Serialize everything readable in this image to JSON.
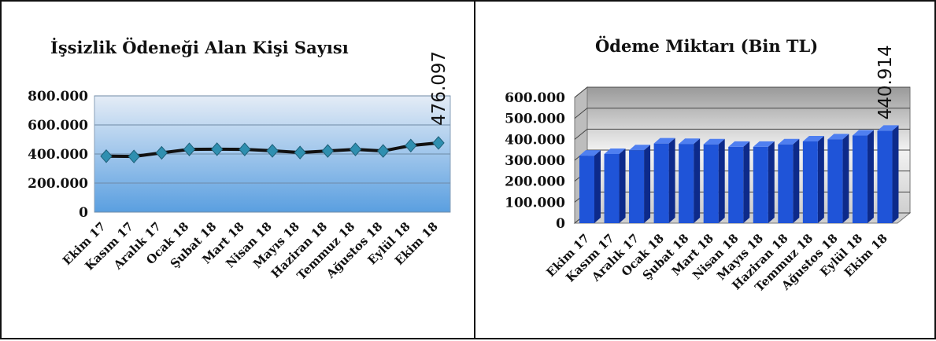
{
  "chart_data": [
    {
      "type": "line",
      "title": "İşsizlik Ödeneği Alan Kişi Sayısı",
      "categories": [
        "Ekim 17",
        "Kasım 17",
        "Aralık 17",
        "Ocak 18",
        "Şubat 18",
        "Mart 18",
        "Nisan 18",
        "Mayıs 18",
        "Haziran 18",
        "Temmuz 18",
        "Ağustos 18",
        "Eylül 18",
        "Ekim 18"
      ],
      "series": [
        {
          "values": [
            385000,
            383000,
            408000,
            432000,
            433000,
            432000,
            422000,
            410000,
            421000,
            432000,
            421000,
            458000,
            476097
          ]
        }
      ],
      "ylim": [
        0,
        800000
      ],
      "yticks": [
        "0",
        "200.000",
        "400.000",
        "600.000",
        "800.000"
      ],
      "data_labels": [
        {
          "index": 12,
          "text": "476.097"
        }
      ],
      "grid": true,
      "colors": {
        "line": "#111111",
        "marker": "#2f8fb0",
        "plot_top": "#e4ecf6",
        "plot_bottom": "#5a9fe0"
      }
    },
    {
      "type": "bar",
      "title": "Ödeme Miktarı (Bin TL)",
      "categories": [
        "Ekim 17",
        "Kasım 17",
        "Aralık 17",
        "Ocak 18",
        "Şubat 18",
        "Mart 18",
        "Nisan 18",
        "Mayıs 18",
        "Haziran 18",
        "Temmuz 18",
        "Ağustos 18",
        "Eylül 18",
        "Ekim 18"
      ],
      "series": [
        {
          "values": [
            322000,
            330000,
            348000,
            380000,
            378000,
            376000,
            364000,
            364000,
            376000,
            390000,
            400000,
            418000,
            440914
          ]
        }
      ],
      "ylim": [
        0,
        600000
      ],
      "yticks": [
        "0",
        "100.000",
        "200.000",
        "300.000",
        "400.000",
        "500.000",
        "600.000"
      ],
      "data_labels": [
        {
          "index": 12,
          "text": "440.914"
        }
      ],
      "grid": true,
      "colors": {
        "bar_front": "#1f54d8",
        "bar_side": "#0d2a8a",
        "bar_top": "#4f7ff0",
        "wall": "#d8d8d8"
      }
    }
  ]
}
